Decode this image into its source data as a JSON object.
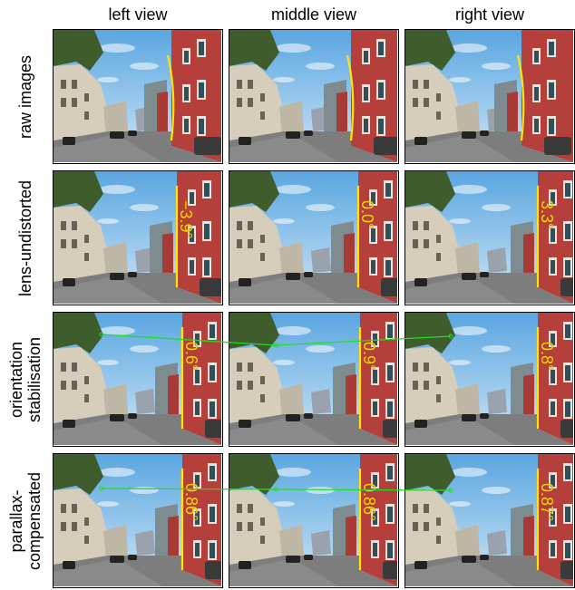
{
  "columns": [
    "left view",
    "middle view",
    "right view"
  ],
  "rows": [
    {
      "label": "raw images",
      "angles": [
        "",
        "",
        ""
      ],
      "edge": "curved"
    },
    {
      "label": "lens-undistorted",
      "angles": [
        "−3.9°",
        "0.0°",
        "3.3°"
      ],
      "edge": "straight"
    },
    {
      "label": "orientation\nstabilisation",
      "angles": [
        "0.6°",
        "0.9°",
        "0.8°"
      ],
      "edge": "straight"
    },
    {
      "label": "parallax-\ncompensated",
      "angles": [
        "0.86°",
        "0.86°",
        "0.87°"
      ],
      "edge": "straight"
    }
  ],
  "colors": {
    "sky": "#8fc3ea",
    "building_red": "#b5403b",
    "edge_line": "#ffe600",
    "feature_track": "#22dd22"
  }
}
